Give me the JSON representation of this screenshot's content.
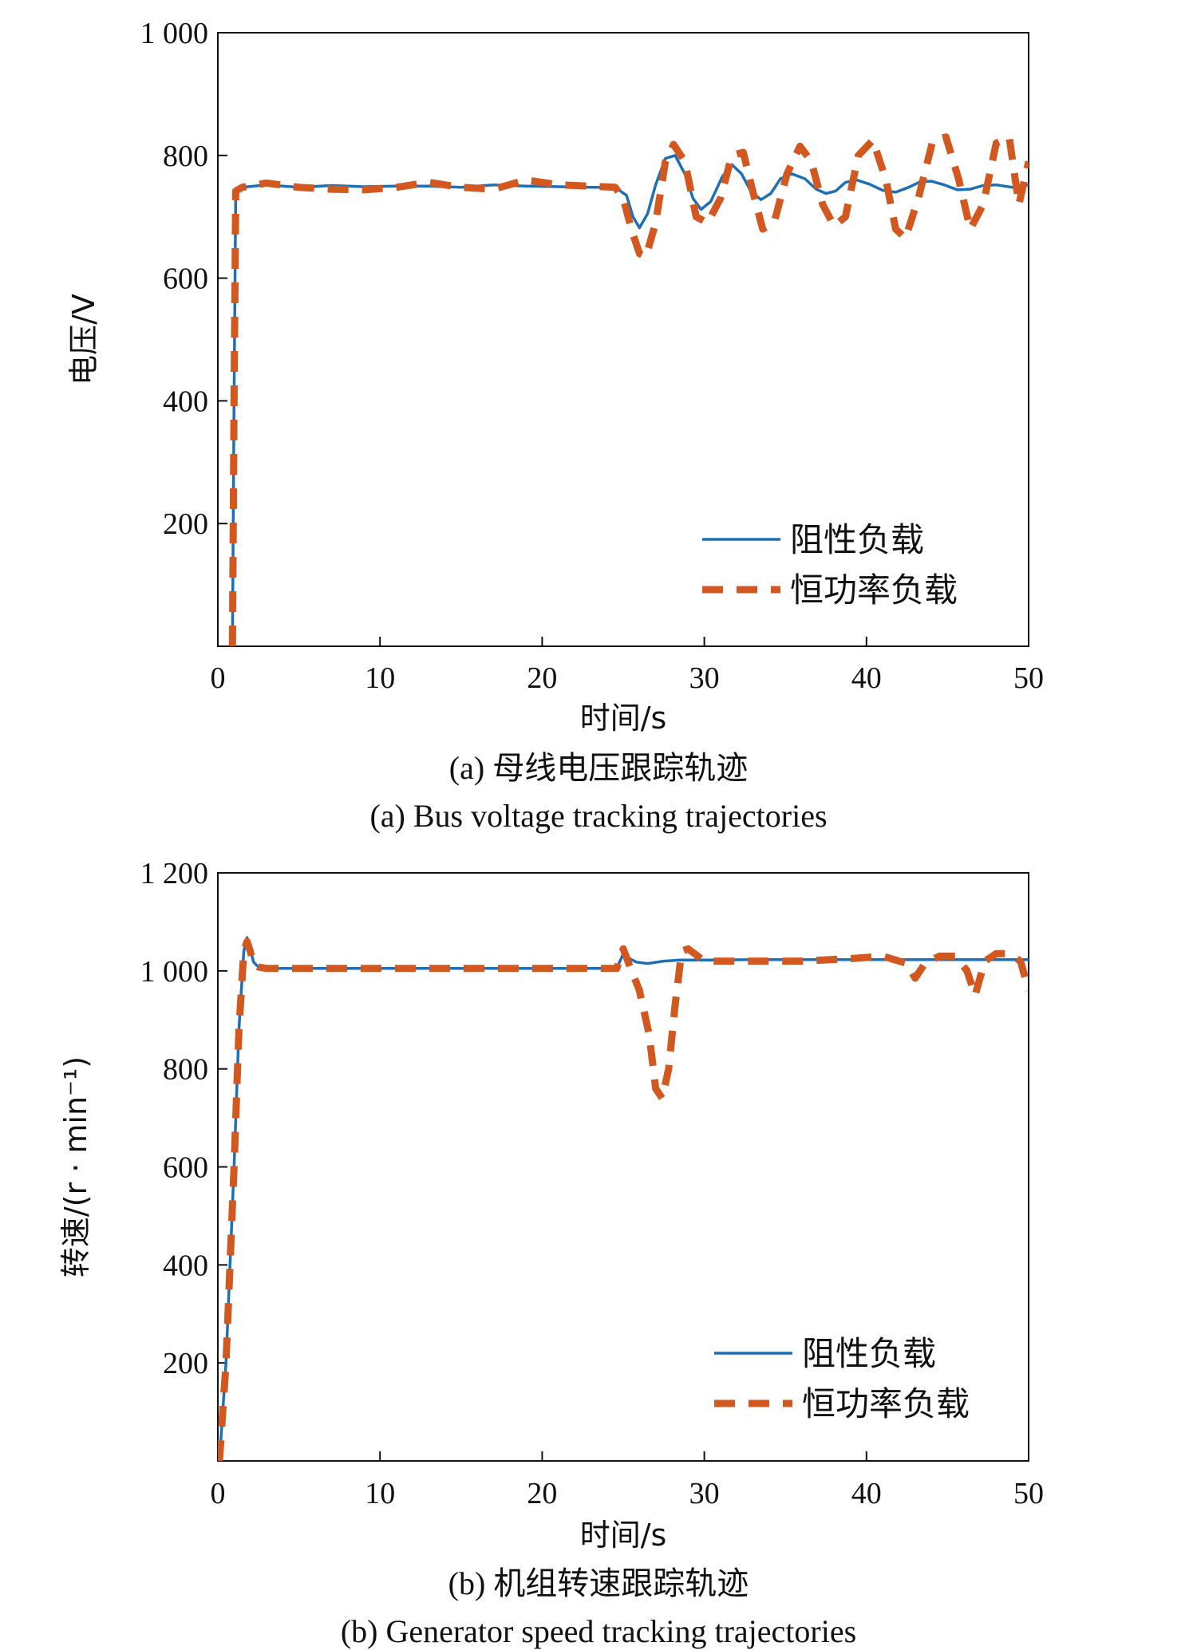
{
  "colors": {
    "resistive": "#1f6fb5",
    "cpl": "#d2581f",
    "axis": "#111111"
  },
  "chart_data": [
    {
      "type": "line",
      "xlabel": "时间/s",
      "ylabel": "电压/V",
      "xlim": [
        0,
        50
      ],
      "ylim": [
        0,
        1000
      ],
      "xticks": [
        0,
        10,
        20,
        30,
        40,
        50
      ],
      "xtick_labels": [
        "0",
        "10",
        "20",
        "30",
        "40",
        "50"
      ],
      "yticks": [
        200,
        400,
        600,
        800,
        1000
      ],
      "ytick_labels": [
        "200",
        "400",
        "600",
        "800",
        "1 000"
      ],
      "caption_cn": "(a) 母线电压跟踪轨迹",
      "caption_en": "(a) Bus voltage tracking trajectories",
      "legend_position": "lower-right",
      "series": [
        {
          "name": "阻性负载",
          "style": "solid",
          "x": [
            0.9,
            1.0,
            1.1,
            1.5,
            3,
            5,
            7,
            9,
            11,
            13,
            15,
            17,
            19,
            21,
            23,
            24.5,
            25.2,
            25.6,
            26.0,
            26.5,
            27.0,
            27.6,
            28.2,
            28.8,
            29.3,
            29.8,
            30.4,
            31.1,
            31.7,
            32.3,
            32.9,
            33.5,
            34.1,
            34.7,
            35.4,
            36.2,
            36.9,
            37.5,
            38.1,
            38.7,
            39.4,
            40.2,
            41.0,
            41.8,
            42.6,
            43.3,
            44.0,
            44.8,
            45.6,
            46.4,
            47.2,
            48.0,
            49.0,
            50.0
          ],
          "y": [
            0,
            400,
            740,
            748,
            752,
            748,
            751,
            749,
            750,
            750,
            748,
            752,
            750,
            749,
            748,
            748,
            735,
            700,
            682,
            705,
            752,
            795,
            800,
            770,
            730,
            712,
            725,
            765,
            785,
            770,
            740,
            728,
            738,
            762,
            770,
            762,
            745,
            738,
            742,
            756,
            760,
            753,
            743,
            740,
            748,
            757,
            758,
            752,
            744,
            745,
            751,
            752,
            748,
            752
          ]
        },
        {
          "name": "恒功率负载",
          "style": "dashed",
          "x": [
            0.9,
            1.0,
            1.1,
            1.5,
            3,
            5,
            7,
            9,
            11,
            13,
            15,
            17,
            19,
            21,
            23,
            24.5,
            25.0,
            25.5,
            26.0,
            26.4,
            27.0,
            27.6,
            28.1,
            28.8,
            29.5,
            30.2,
            31.0,
            31.7,
            32.4,
            33.0,
            33.6,
            34.3,
            35.1,
            35.9,
            36.6,
            37.3,
            38.0,
            38.7,
            39.5,
            40.4,
            41.2,
            41.8,
            42.4,
            43.2,
            44.1,
            44.9,
            45.7,
            46.4,
            47.2,
            48.0,
            48.8,
            49.4,
            50.0
          ],
          "y": [
            0,
            400,
            742,
            748,
            755,
            748,
            745,
            744,
            748,
            756,
            748,
            745,
            760,
            752,
            750,
            748,
            730,
            680,
            640,
            635,
            690,
            790,
            818,
            790,
            700,
            690,
            730,
            800,
            805,
            740,
            680,
            690,
            770,
            815,
            790,
            720,
            685,
            700,
            800,
            825,
            760,
            680,
            665,
            730,
            825,
            830,
            760,
            680,
            720,
            820,
            830,
            720,
            790
          ]
        }
      ]
    },
    {
      "type": "line",
      "xlabel": "时间/s",
      "ylabel": "转速/(r · min⁻¹)",
      "xlim": [
        0,
        50
      ],
      "ylim": [
        0,
        1200
      ],
      "xticks": [
        0,
        10,
        20,
        30,
        40,
        50
      ],
      "xtick_labels": [
        "0",
        "10",
        "20",
        "30",
        "40",
        "50"
      ],
      "yticks": [
        200,
        400,
        600,
        800,
        1000,
        1200
      ],
      "ytick_labels": [
        "200",
        "400",
        "600",
        "800",
        "1 000",
        "1 200"
      ],
      "caption_cn": "(b) 机组转速跟踪轨迹",
      "caption_en": "(b) Generator speed tracking trajectories",
      "legend_position": "lower-right",
      "series": [
        {
          "name": "阻性负载",
          "style": "solid",
          "x": [
            0.1,
            0.5,
            1.0,
            1.3,
            1.6,
            1.8,
            2.0,
            2.2,
            2.5,
            3.0,
            4,
            6,
            10,
            15,
            20,
            24.6,
            25.0,
            25.4,
            25.8,
            26.5,
            27.5,
            28.5,
            30,
            33,
            36,
            40,
            44,
            47,
            50
          ],
          "y": [
            0,
            200,
            600,
            880,
            1040,
            1068,
            1045,
            1018,
            1008,
            1005,
            1005,
            1005,
            1005,
            1005,
            1005,
            1005,
            1035,
            1025,
            1018,
            1015,
            1020,
            1022,
            1022,
            1023,
            1023,
            1023,
            1023,
            1023,
            1023
          ]
        },
        {
          "name": "恒功率负载",
          "style": "dashed",
          "x": [
            0.1,
            0.5,
            1.0,
            1.3,
            1.6,
            1.8,
            2.0,
            2.2,
            2.5,
            3.0,
            4,
            6,
            10,
            15,
            20,
            24.6,
            25.0,
            25.4,
            26.0,
            26.6,
            27.0,
            27.4,
            27.8,
            28.2,
            28.6,
            29.0,
            30.0,
            31.0,
            33,
            36,
            39,
            41,
            42.5,
            43.0,
            43.6,
            44.5,
            45.5,
            46.2,
            46.7,
            47.3,
            48.0,
            48.8,
            49.5,
            50.0
          ],
          "y": [
            0,
            200,
            600,
            880,
            1040,
            1060,
            1040,
            1015,
            1008,
            1005,
            1005,
            1005,
            1005,
            1005,
            1005,
            1005,
            1045,
            1010,
            960,
            870,
            760,
            740,
            800,
            930,
            1040,
            1045,
            1020,
            1020,
            1020,
            1020,
            1025,
            1030,
            1015,
            985,
            1015,
            1030,
            1030,
            1000,
            950,
            1020,
            1035,
            1035,
            1020,
            960
          ]
        }
      ]
    }
  ]
}
